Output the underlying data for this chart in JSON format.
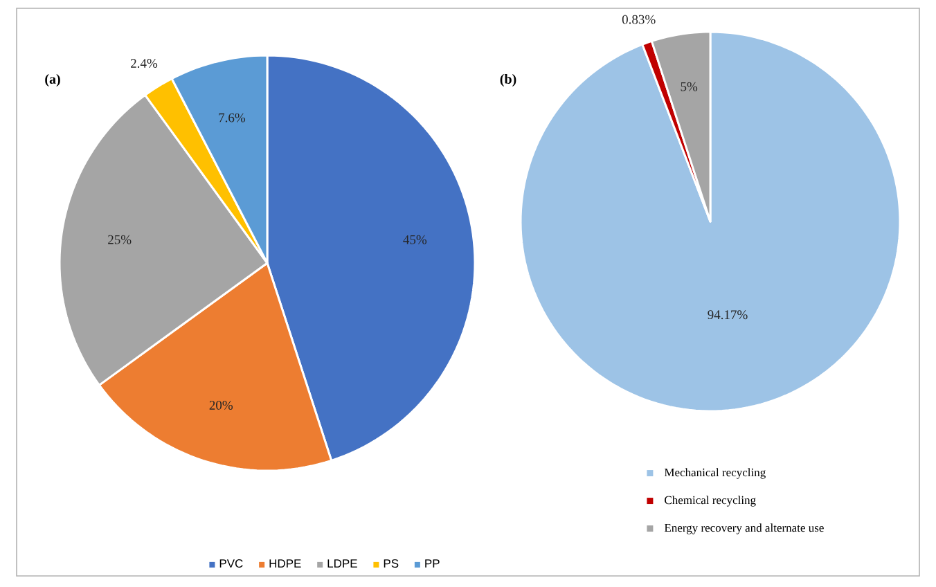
{
  "chart_data": [
    {
      "type": "pie",
      "title": "(a)",
      "categories": [
        "PVC",
        "HDPE",
        "LDPE",
        "PS",
        "PP"
      ],
      "values": [
        45,
        20,
        25,
        2.4,
        7.6
      ],
      "colors": [
        "#4472c4",
        "#ed7d31",
        "#a5a5a5",
        "#ffc000",
        "#5b9bd5"
      ],
      "value_labels": [
        "45%",
        "20%",
        "25%",
        "2.4%",
        "7.6%"
      ],
      "legend": "bottom"
    },
    {
      "type": "pie",
      "title": "(b)",
      "categories": [
        "Mechanical recycling",
        "Chemical recycling",
        "Energy recovery and alternate use"
      ],
      "values": [
        94.17,
        0.83,
        5
      ],
      "colors": [
        "#9dc3e6",
        "#c00000",
        "#a5a5a5"
      ],
      "value_labels": [
        "94.17%",
        "0.83%",
        "5%"
      ],
      "legend": "bottom"
    }
  ]
}
